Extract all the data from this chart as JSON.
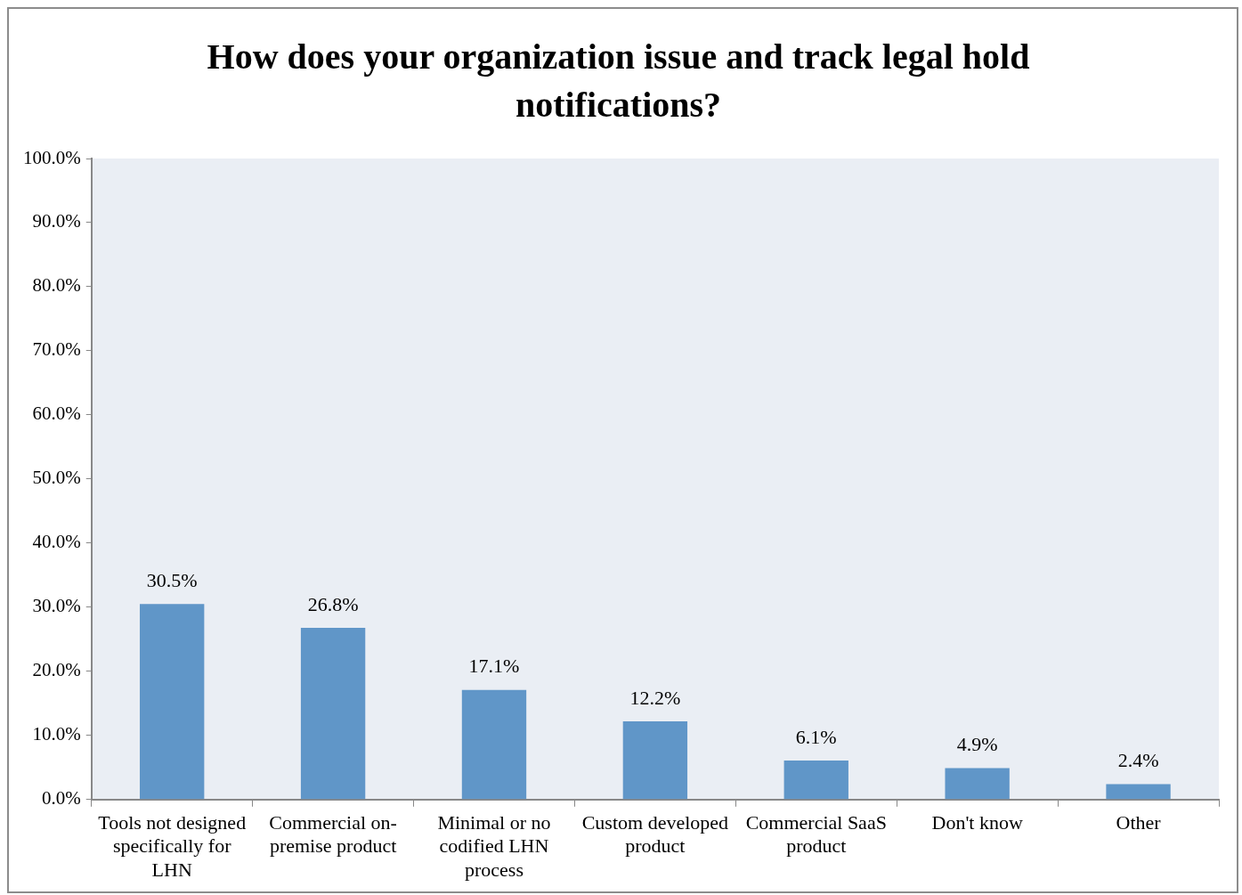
{
  "chart_data": {
    "type": "bar",
    "title": "How does your organization issue and track legal hold notifications?",
    "categories": [
      "Tools not designed specifically for LHN",
      "Commercial on-premise product",
      "Minimal or no codified LHN process",
      "Custom developed product",
      "Commercial SaaS product",
      "Don't know",
      "Other"
    ],
    "values": [
      30.5,
      26.8,
      17.1,
      12.2,
      6.1,
      4.9,
      2.4
    ],
    "value_labels": [
      "30.5%",
      "26.8%",
      "17.1%",
      "12.2%",
      "6.1%",
      "4.9%",
      "2.4%"
    ],
    "color": "#6096c8",
    "ylim": [
      0,
      100
    ],
    "yticks": [
      {
        "value": 0,
        "label": "0.0%"
      },
      {
        "value": 10,
        "label": "10.0%"
      },
      {
        "value": 20,
        "label": "20.0%"
      },
      {
        "value": 30,
        "label": "30.0%"
      },
      {
        "value": 40,
        "label": "40.0%"
      },
      {
        "value": 50,
        "label": "50.0%"
      },
      {
        "value": 60,
        "label": "60.0%"
      },
      {
        "value": 70,
        "label": "70.0%"
      },
      {
        "value": 80,
        "label": "80.0%"
      },
      {
        "value": 90,
        "label": "90.0%"
      },
      {
        "value": 100,
        "label": "100.0%"
      }
    ],
    "grid": false,
    "legend": false
  }
}
